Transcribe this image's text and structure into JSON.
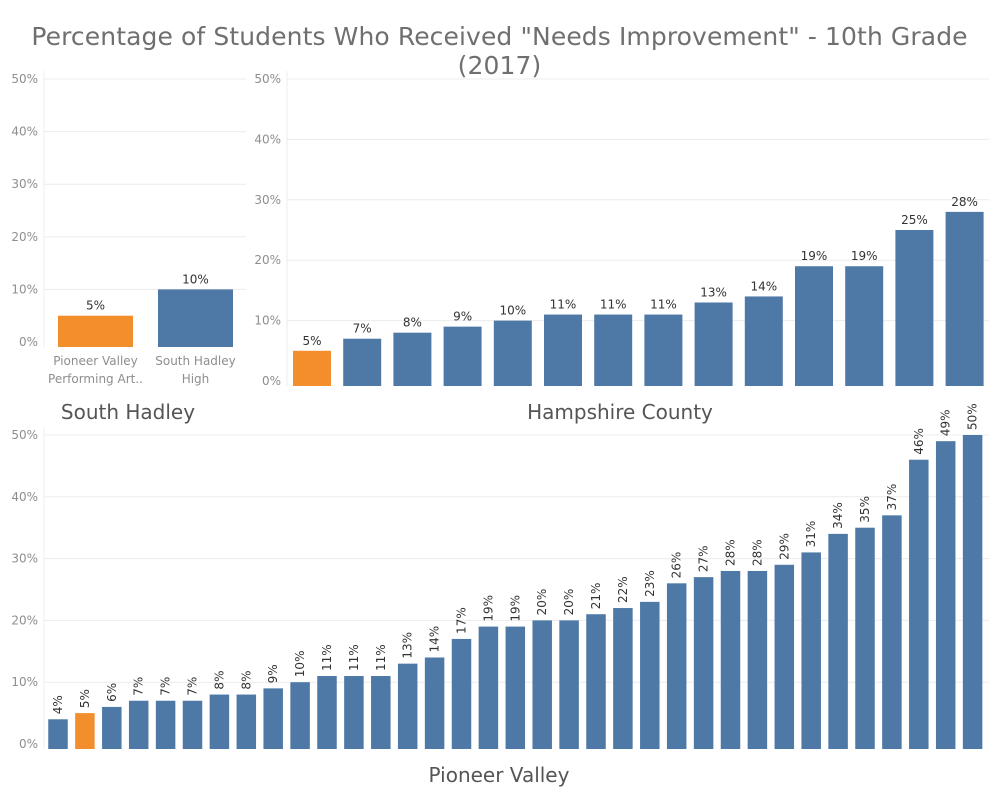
{
  "title": "Percentage of Students Who Received \"Needs Improvement\" - 10th Grade (2017)",
  "colors": {
    "highlight": "#f28e2b",
    "base": "#4e79a7",
    "grid": "#ececec",
    "axis": "#cfcfcf"
  },
  "chart_data": [
    {
      "panel": "South Hadley",
      "type": "bar",
      "title": "South Hadley",
      "ylim": [
        0,
        0.5
      ],
      "y_ticks": [
        "0%",
        "10%",
        "20%",
        "30%",
        "40%",
        "50%"
      ],
      "categories": [
        "Pioneer Valley Performing Art..",
        "South Hadley High"
      ],
      "category_lines": [
        [
          "Pioneer Valley",
          "Performing Art.."
        ],
        [
          "South Hadley",
          "High"
        ]
      ],
      "values": [
        0.05,
        0.1
      ],
      "labels": [
        "5%",
        "10%"
      ],
      "highlight_index": 0
    },
    {
      "panel": "Hampshire County",
      "type": "bar",
      "title": "Hampshire County",
      "ylim": [
        0,
        0.5
      ],
      "y_ticks": [
        "0%",
        "10%",
        "20%",
        "30%",
        "40%",
        "50%"
      ],
      "values": [
        0.05,
        0.07,
        0.08,
        0.09,
        0.1,
        0.11,
        0.11,
        0.11,
        0.13,
        0.14,
        0.19,
        0.19,
        0.25,
        0.28
      ],
      "labels": [
        "5%",
        "7%",
        "8%",
        "9%",
        "10%",
        "11%",
        "11%",
        "11%",
        "13%",
        "14%",
        "19%",
        "19%",
        "25%",
        "28%"
      ],
      "highlight_index": 0
    },
    {
      "panel": "Pioneer Valley",
      "type": "bar",
      "title": "Pioneer Valley",
      "ylim": [
        0,
        0.5
      ],
      "y_ticks": [
        "0%",
        "10%",
        "20%",
        "30%",
        "40%",
        "50%"
      ],
      "values": [
        0.04,
        0.05,
        0.06,
        0.07,
        0.07,
        0.07,
        0.08,
        0.08,
        0.09,
        0.1,
        0.11,
        0.11,
        0.11,
        0.13,
        0.14,
        0.17,
        0.19,
        0.19,
        0.2,
        0.2,
        0.21,
        0.22,
        0.23,
        0.26,
        0.27,
        0.28,
        0.28,
        0.29,
        0.31,
        0.34,
        0.35,
        0.37,
        0.46,
        0.49,
        0.5
      ],
      "labels": [
        "4%",
        "5%",
        "6%",
        "7%",
        "7%",
        "7%",
        "8%",
        "8%",
        "9%",
        "10%",
        "11%",
        "11%",
        "11%",
        "13%",
        "14%",
        "17%",
        "19%",
        "19%",
        "20%",
        "20%",
        "21%",
        "22%",
        "23%",
        "26%",
        "27%",
        "28%",
        "28%",
        "29%",
        "31%",
        "34%",
        "35%",
        "37%",
        "46%",
        "49%",
        "50%"
      ],
      "highlight_index": 1
    }
  ]
}
